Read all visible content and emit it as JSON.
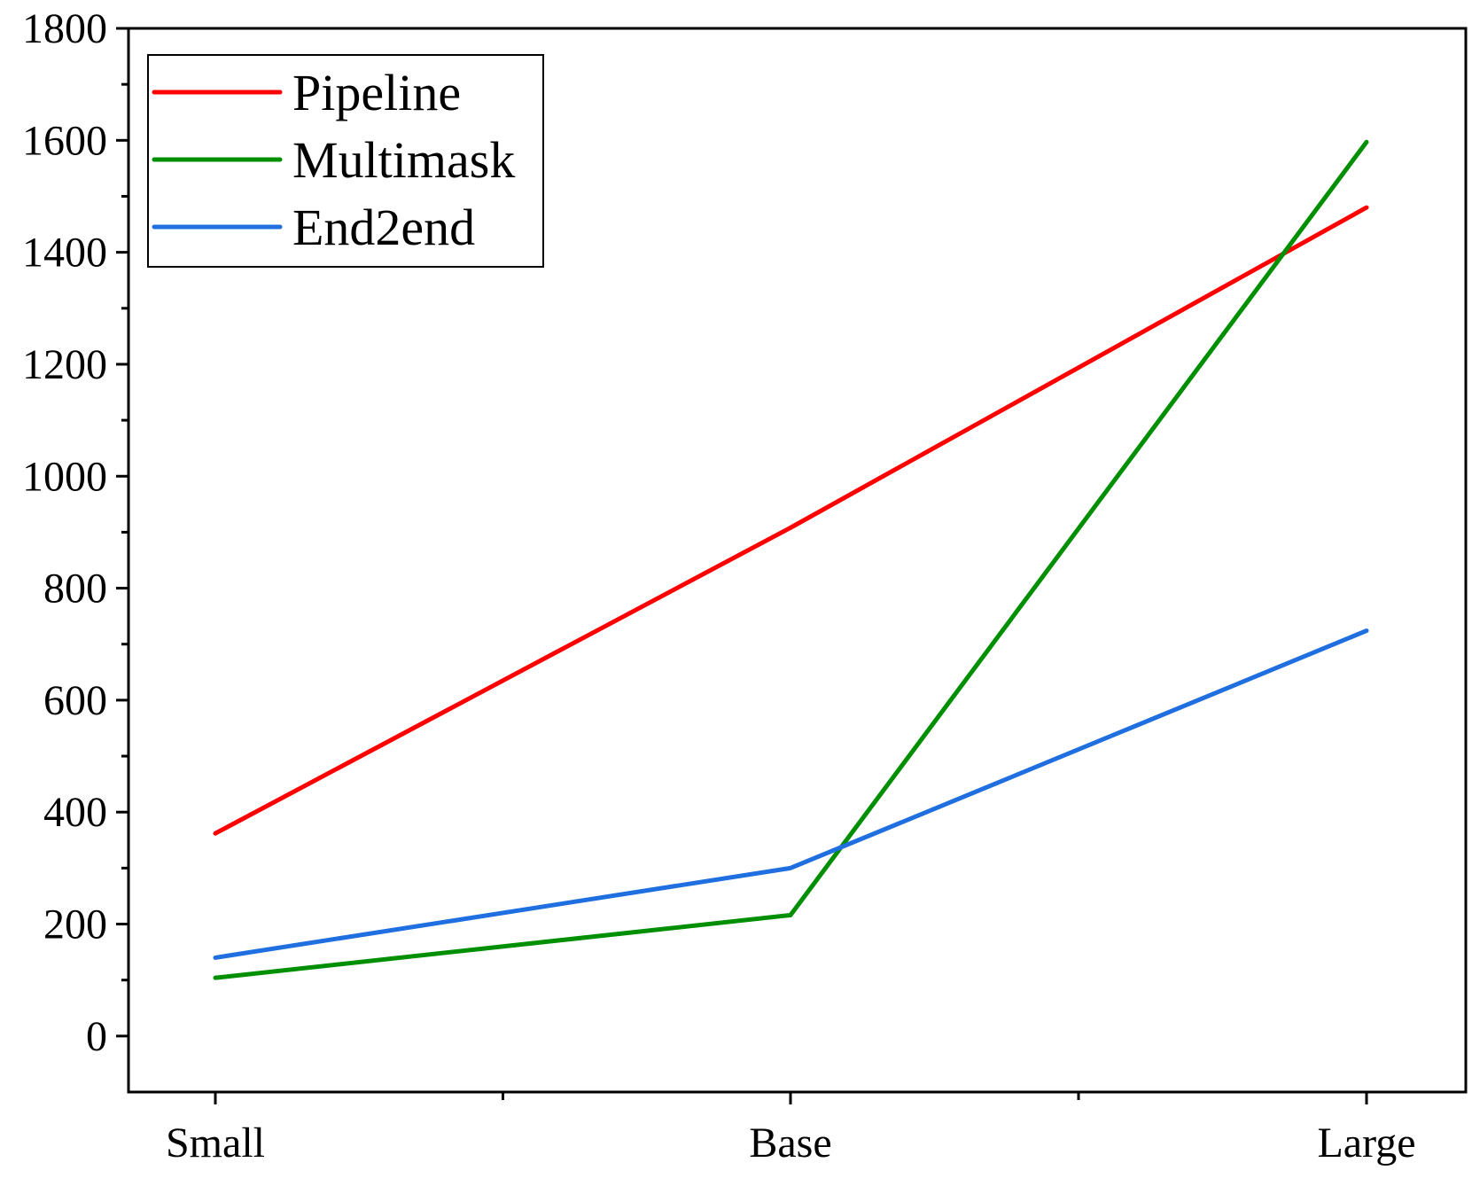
{
  "chart_data": {
    "type": "line",
    "categories": [
      "Small",
      "Base",
      "Large"
    ],
    "series": [
      {
        "name": "Pipeline",
        "color": "#ff0000",
        "values": [
          362,
          908,
          1480
        ]
      },
      {
        "name": "Multimask",
        "color": "#008f00",
        "values": [
          104,
          216,
          1597
        ]
      },
      {
        "name": "End2end",
        "color": "#1f6fe0",
        "values": [
          140,
          300,
          724
        ]
      }
    ],
    "title": "",
    "xlabel": "",
    "ylabel": "",
    "ylim": [
      -100,
      1800
    ],
    "yticks": [
      0,
      200,
      400,
      600,
      800,
      1000,
      1200,
      1400,
      1600,
      1800
    ],
    "grid": false,
    "legend_position": "top-left"
  }
}
